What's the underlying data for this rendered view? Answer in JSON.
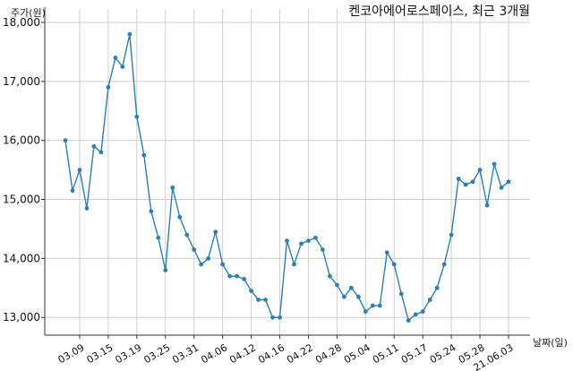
{
  "chart_data": {
    "type": "line",
    "title": "켄코아에어로스페이스, 최근 3개월",
    "ylabel": "주가(원)",
    "xlabel": "날짜(일)",
    "ylim": [
      12700,
      18000
    ],
    "yticks": [
      13000,
      14000,
      15000,
      16000,
      17000,
      18000
    ],
    "ytick_labels": [
      "13,000",
      "14,000",
      "15,000",
      "16,000",
      "17,000",
      "18,000"
    ],
    "xtick_labels": [
      "03.09",
      "03.15",
      "03.19",
      "03.25",
      "03.31",
      "04.06",
      "04.12",
      "04.16",
      "04.22",
      "04.28",
      "05.04",
      "05.11",
      "05.17",
      "05.24",
      "05.28",
      "21.06.03"
    ],
    "xtick_indices": [
      2,
      6,
      10,
      14,
      18,
      22,
      26,
      30,
      34,
      38,
      42,
      46,
      50,
      54,
      58,
      62
    ],
    "grid": true,
    "line_color": "#2f7fb2",
    "series": [
      {
        "values": [
          16000,
          15150,
          15500,
          14850,
          15900,
          15800,
          16900,
          17400,
          17250,
          17800,
          16400,
          15750,
          14800,
          14350,
          13800,
          15200,
          14700,
          14400,
          14150,
          13900,
          14000,
          14450,
          13900,
          13700,
          13700,
          13650,
          13450,
          13300,
          13300,
          13000,
          13000,
          14300,
          13900,
          14250,
          14300,
          14350,
          14150,
          13700,
          13550,
          13350,
          13500,
          13350,
          13100,
          13200,
          13200,
          14100,
          13900,
          13400,
          12950,
          13050,
          13100,
          13300,
          13500,
          13900,
          14400,
          15350,
          15250,
          15300,
          15500,
          14900,
          15600,
          15200,
          15300
        ]
      }
    ]
  }
}
